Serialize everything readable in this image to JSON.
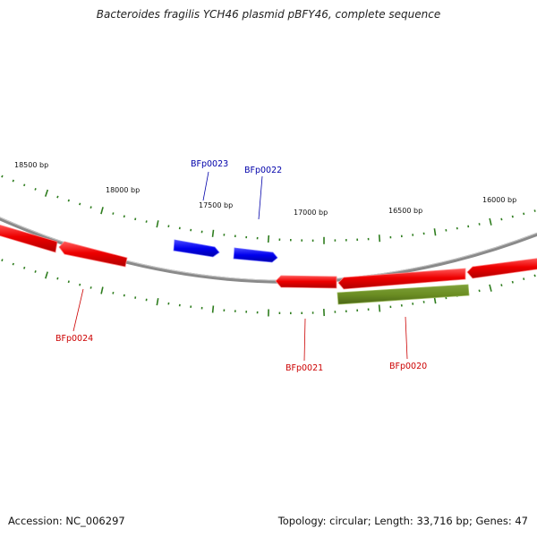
{
  "title": "Bacteroides fragilis YCH46 plasmid pBFY46, complete sequence",
  "footer": {
    "accession": "Accession: NC_006297",
    "summary": "Topology: circular; Length: 33,716 bp; Genes: 47"
  },
  "colors": {
    "backbone": "#8a8a8a",
    "tick": "#2e7d1e",
    "forward_gene": "#0000ee",
    "reverse_gene": "#ee0000",
    "other_feature": "#6b8e23",
    "forward_label": "#0000aa",
    "reverse_label": "#cc0000"
  },
  "scale": {
    "labels": [
      {
        "bp": 18500,
        "text": "18500 bp"
      },
      {
        "bp": 18000,
        "text": "18000 bp"
      },
      {
        "bp": 17500,
        "text": "17500 bp"
      },
      {
        "bp": 17000,
        "text": "17000 bp"
      },
      {
        "bp": 16500,
        "text": "16500 bp"
      },
      {
        "bp": 16000,
        "text": "16000 bp"
      }
    ]
  },
  "genes": [
    {
      "name": "BFp0024",
      "strand": "reverse"
    },
    {
      "name": "BFp0023",
      "strand": "forward"
    },
    {
      "name": "BFp0022",
      "strand": "forward"
    },
    {
      "name": "BFp0021",
      "strand": "reverse"
    },
    {
      "name": "BFp0020",
      "strand": "reverse"
    }
  ]
}
